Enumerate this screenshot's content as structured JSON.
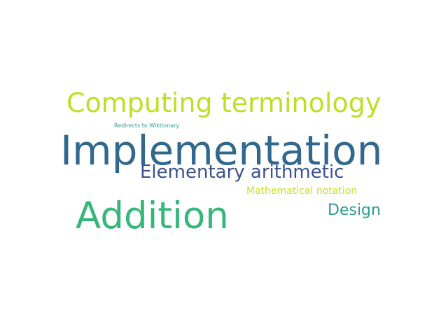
{
  "word_cloud": {
    "words": [
      {
        "text": "Computing terminology",
        "color": "#bddf26"
      },
      {
        "text": "Redirects to Wiktionary",
        "color": "#2a9d8f"
      },
      {
        "text": "Implementation",
        "color": "#31688e"
      },
      {
        "text": "Elementary arithmetic",
        "color": "#3b528b"
      },
      {
        "text": "Mathematical notation",
        "color": "#c8e020"
      },
      {
        "text": "Addition",
        "color": "#35b779"
      },
      {
        "text": "Design",
        "color": "#2f9c8f"
      }
    ]
  }
}
